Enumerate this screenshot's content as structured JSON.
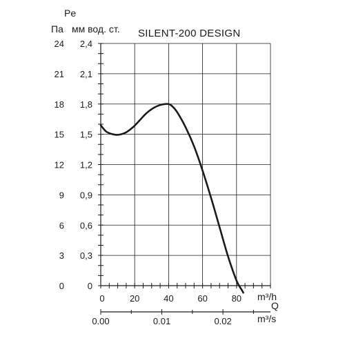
{
  "chart_data": {
    "type": "line",
    "title": "SILENT-200 DESIGN",
    "y_symbol": "Pe",
    "y_left_unit": "Па",
    "y_right_unit": "мм вод. ст.",
    "x_symbol": "Q",
    "x_top_unit": "m³/h",
    "x_bottom_unit": "m³/s",
    "y_left_ticks": [
      "24",
      "21",
      "18",
      "15",
      "12",
      "9",
      "6",
      "3",
      "0"
    ],
    "y_right_ticks": [
      "2,4",
      "2,1",
      "1,8",
      "1,5",
      "1,2",
      "0,9",
      "0,6",
      "0,3",
      "0"
    ],
    "x_top_ticks": [
      "0",
      "20",
      "40",
      "60",
      "80"
    ],
    "x_bottom_ticks": [
      "0.00",
      "0.01",
      "0.02"
    ],
    "x_top_tick_values": [
      0,
      20,
      40,
      60,
      80
    ],
    "x_bottom_tick_values": [
      0,
      0.01,
      0.02
    ],
    "y_right_tick_values": [
      2.4,
      2.1,
      1.8,
      1.5,
      1.2,
      0.9,
      0.6,
      0.3,
      0
    ],
    "xlim": [
      0,
      100
    ],
    "ylim": [
      0,
      2.4
    ],
    "grid": true,
    "series": [
      {
        "x": [
          0,
          3,
          6,
          9,
          12,
          15,
          19,
          23,
          27,
          31,
          35,
          38,
          40,
          42,
          45,
          50,
          55,
          60,
          65,
          70,
          75,
          80,
          83,
          84
        ],
        "y": [
          1.59,
          1.53,
          1.505,
          1.495,
          1.5,
          1.52,
          1.57,
          1.64,
          1.71,
          1.76,
          1.79,
          1.8,
          1.8,
          1.78,
          1.72,
          1.57,
          1.38,
          1.14,
          0.87,
          0.58,
          0.29,
          0.05,
          -0.04,
          -0.07
        ]
      }
    ]
  }
}
